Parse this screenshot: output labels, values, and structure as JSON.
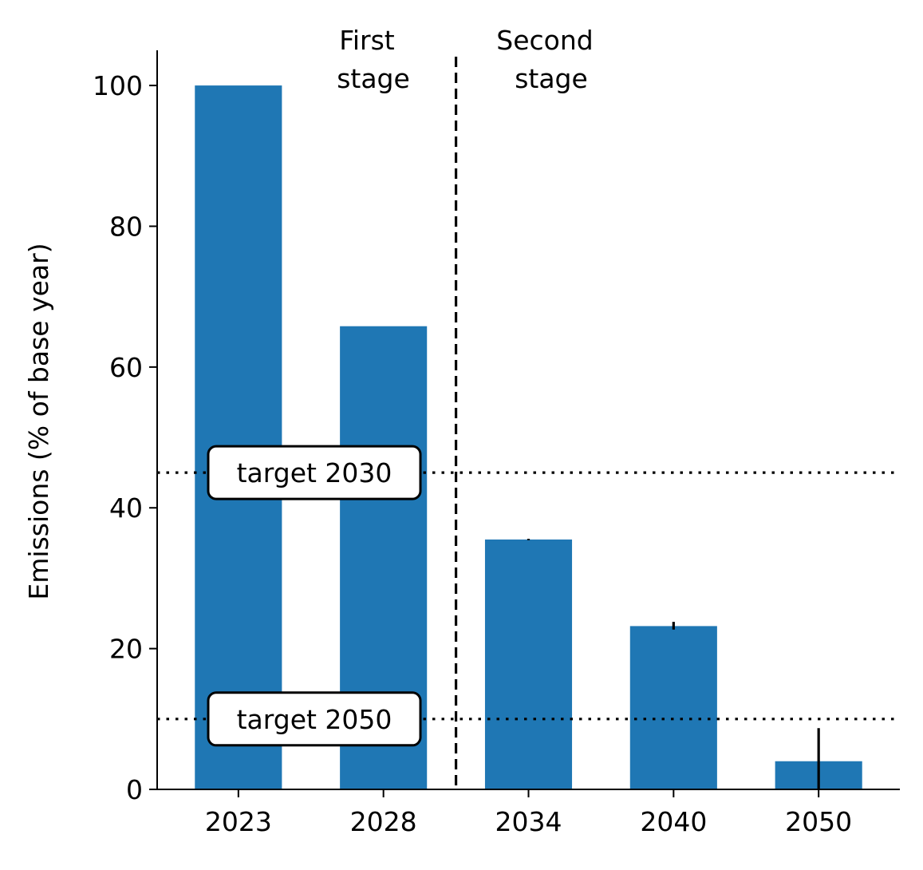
{
  "chart_data": {
    "type": "bar",
    "categories": [
      "2023",
      "2028",
      "2034",
      "2040",
      "2050"
    ],
    "values": [
      100,
      65.8,
      35.5,
      23.2,
      4.0
    ],
    "error_bars": [
      {
        "category": "2023",
        "low": 100,
        "high": 100
      },
      {
        "category": "2028",
        "low": 65.8,
        "high": 65.8
      },
      {
        "category": "2034",
        "low": 35.4,
        "high": 35.6
      },
      {
        "category": "2040",
        "low": 22.7,
        "high": 23.8
      },
      {
        "category": "2050",
        "low": 0,
        "high": 8.7
      }
    ],
    "title": "",
    "xlabel": "",
    "ylabel": "Emissions (% of base year)",
    "ylim": [
      0,
      105
    ],
    "yticks": [
      0,
      20,
      40,
      60,
      80,
      100
    ],
    "bar_color": "#1f77b4",
    "grid": false,
    "stage_divider": {
      "between": [
        "2028",
        "2034"
      ],
      "style": "dashed"
    },
    "stage_labels": [
      {
        "lines": [
          "First",
          "stage"
        ]
      },
      {
        "lines": [
          "Second",
          "stage"
        ]
      }
    ],
    "reference_lines": [
      {
        "label": "target 2030",
        "value": 45,
        "style": "dotted"
      },
      {
        "label": "target 2050",
        "value": 10,
        "style": "dotted"
      }
    ]
  }
}
